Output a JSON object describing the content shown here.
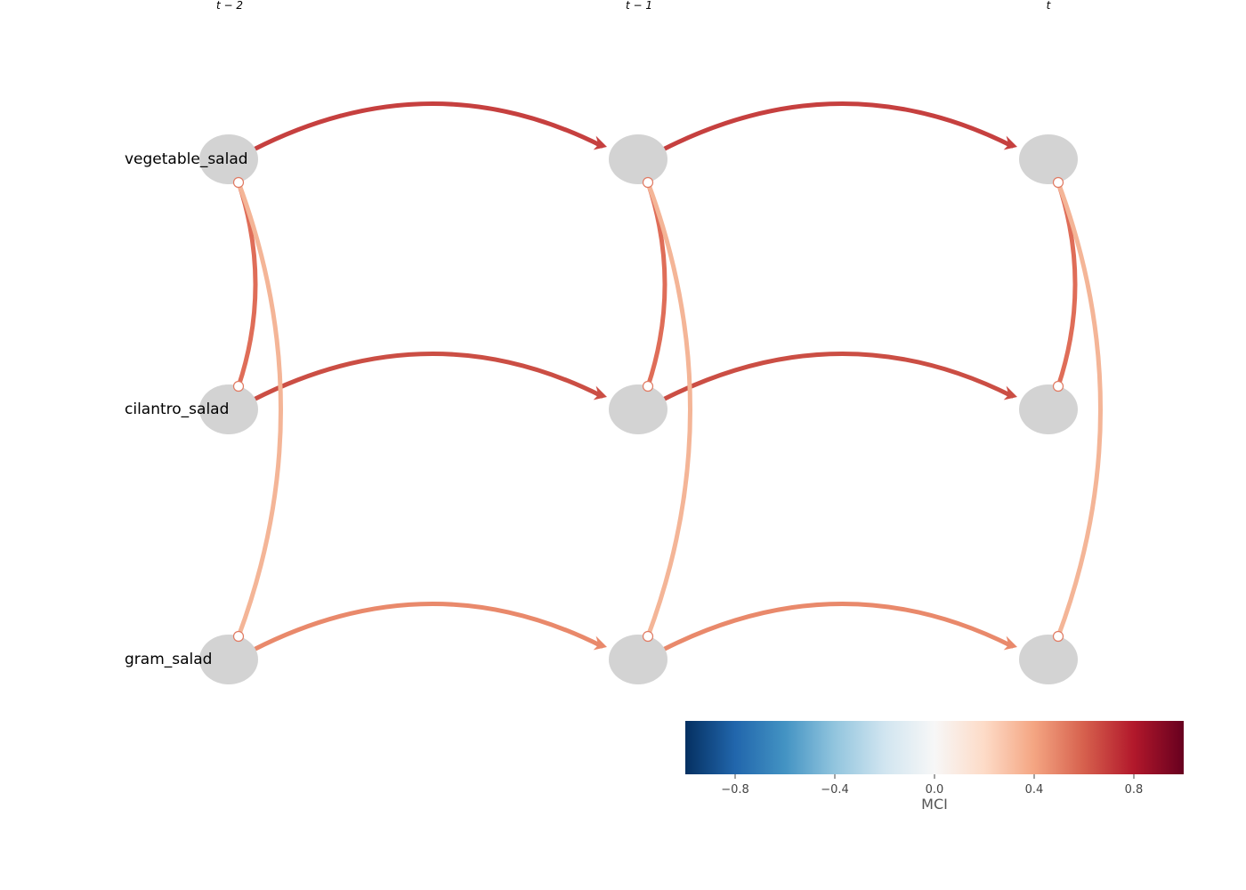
{
  "time_labels": [
    "t − 2",
    "t − 1",
    "t"
  ],
  "variables": [
    "vegetable_salad",
    "cilantro_salad",
    "gram_salad"
  ],
  "node_color": "#d3d3d3",
  "links": [
    {
      "type": "lagged",
      "from": "vegetable_salad",
      "to": "vegetable_salad",
      "lag": 1,
      "value": 0.78,
      "color": "#c6403f"
    },
    {
      "type": "lagged",
      "from": "cilantro_salad",
      "to": "cilantro_salad",
      "lag": 1,
      "value": 0.73,
      "color": "#cb4e44"
    },
    {
      "type": "lagged",
      "from": "gram_salad",
      "to": "gram_salad",
      "lag": 1,
      "value": 0.47,
      "color": "#e9896b"
    },
    {
      "type": "contemporaneous",
      "from": "vegetable_salad",
      "to": "cilantro_salad",
      "value": 0.6,
      "color": "#df6d58"
    },
    {
      "type": "contemporaneous",
      "from": "vegetable_salad",
      "to": "gram_salad",
      "value": 0.32,
      "color": "#f4b597"
    }
  ],
  "colorbar": {
    "label": "MCI",
    "range": [
      -1,
      1
    ],
    "ticks": [
      "−0.8",
      "−0.4",
      "0.0",
      "0.4",
      "0.8"
    ],
    "tick_values": [
      -0.8,
      -0.4,
      0.0,
      0.4,
      0.8
    ],
    "colormap": "RdBu_r",
    "stops": [
      "#053061",
      "#2166ac",
      "#4393c3",
      "#92c5de",
      "#d1e5f0",
      "#f7f7f7",
      "#fddbc7",
      "#f4a582",
      "#d6604d",
      "#b2182b",
      "#67001f"
    ]
  }
}
